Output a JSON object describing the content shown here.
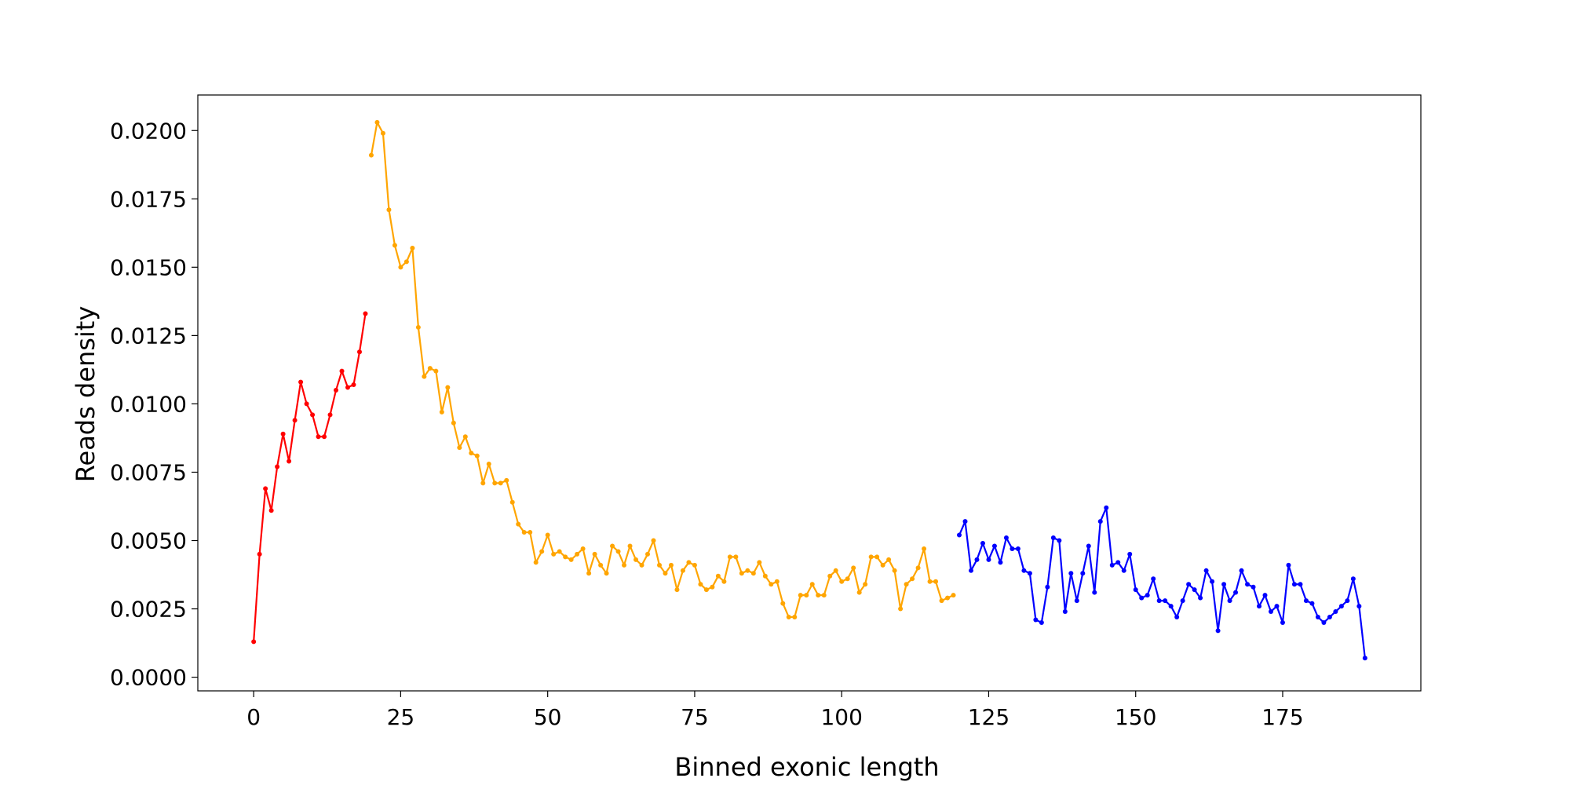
{
  "chart_data": {
    "type": "line",
    "title": "",
    "xlabel": "Binned exonic length",
    "ylabel": "Reads density",
    "xlim": [
      -9.5,
      198.5
    ],
    "ylim": [
      -0.0005,
      0.0213
    ],
    "grid": false,
    "legend": "none",
    "x_ticks": [
      0,
      25,
      50,
      75,
      100,
      125,
      150,
      175
    ],
    "x_tick_labels": [
      "0",
      "25",
      "50",
      "75",
      "100",
      "125",
      "150",
      "175"
    ],
    "y_ticks": [
      0,
      0.0025,
      0.005,
      0.0075,
      0.01,
      0.0125,
      0.015,
      0.0175,
      0.02
    ],
    "y_tick_labels": [
      "0.0000",
      "0.0025",
      "0.0050",
      "0.0075",
      "0.0100",
      "0.0125",
      "0.0150",
      "0.0175",
      "0.0200"
    ],
    "series": [
      {
        "color": "#ff0000",
        "x_start": 0,
        "values": [
          0.0013,
          0.0045,
          0.0069,
          0.0061,
          0.0077,
          0.0089,
          0.0079,
          0.0094,
          0.0108,
          0.01,
          0.0096,
          0.0088,
          0.0088,
          0.0096,
          0.0105,
          0.0112,
          0.0106,
          0.0107,
          0.0119,
          0.0133
        ]
      },
      {
        "color": "#ffa500",
        "x_start": 20,
        "values": [
          0.0191,
          0.0203,
          0.0199,
          0.0171,
          0.0158,
          0.015,
          0.0152,
          0.0157,
          0.0128,
          0.011,
          0.0113,
          0.0112,
          0.0097,
          0.0106,
          0.0093,
          0.0084,
          0.0088,
          0.0082,
          0.0081,
          0.0071,
          0.0078,
          0.0071,
          0.0071,
          0.0072,
          0.0064,
          0.0056,
          0.0053,
          0.0053,
          0.0042,
          0.0046,
          0.0052,
          0.0045,
          0.0046,
          0.0044,
          0.0043,
          0.0045,
          0.0047,
          0.0038,
          0.0045,
          0.0041,
          0.0038,
          0.0048,
          0.0046,
          0.0041,
          0.0048,
          0.0043,
          0.0041,
          0.0045,
          0.005,
          0.0041,
          0.0038,
          0.0041,
          0.0032,
          0.0039,
          0.0042,
          0.0041,
          0.0034,
          0.0032,
          0.0033,
          0.0037,
          0.0035,
          0.0044,
          0.0044,
          0.0038,
          0.0039,
          0.0038,
          0.0042,
          0.0037,
          0.0034,
          0.0035,
          0.0027,
          0.0022,
          0.0022,
          0.003,
          0.003,
          0.0034,
          0.003,
          0.003,
          0.0037,
          0.0039,
          0.0035,
          0.0036,
          0.004,
          0.0031,
          0.0034,
          0.0044,
          0.0044,
          0.0041,
          0.0043,
          0.0039,
          0.0025,
          0.0034,
          0.0036,
          0.004,
          0.0047,
          0.0035,
          0.0035,
          0.0028,
          0.0029,
          0.003
        ]
      },
      {
        "color": "#0000ff",
        "x_start": 120,
        "values": [
          0.0052,
          0.0057,
          0.0039,
          0.0043,
          0.0049,
          0.0043,
          0.0048,
          0.0042,
          0.0051,
          0.0047,
          0.0047,
          0.0039,
          0.0038,
          0.0021,
          0.002,
          0.0033,
          0.0051,
          0.005,
          0.0024,
          0.0038,
          0.0028,
          0.0038,
          0.0048,
          0.0031,
          0.0057,
          0.0062,
          0.0041,
          0.0042,
          0.0039,
          0.0045,
          0.0032,
          0.0029,
          0.003,
          0.0036,
          0.0028,
          0.0028,
          0.0026,
          0.0022,
          0.0028,
          0.0034,
          0.0032,
          0.0029,
          0.0039,
          0.0035,
          0.0017,
          0.0034,
          0.0028,
          0.0031,
          0.0039,
          0.0034,
          0.0033,
          0.0026,
          0.003,
          0.0024,
          0.0026,
          0.002,
          0.0041,
          0.0034,
          0.0034,
          0.0028,
          0.0027,
          0.0022,
          0.002,
          0.0022,
          0.0024,
          0.0026,
          0.0028,
          0.0036,
          0.0026,
          0.0007
        ]
      }
    ]
  }
}
